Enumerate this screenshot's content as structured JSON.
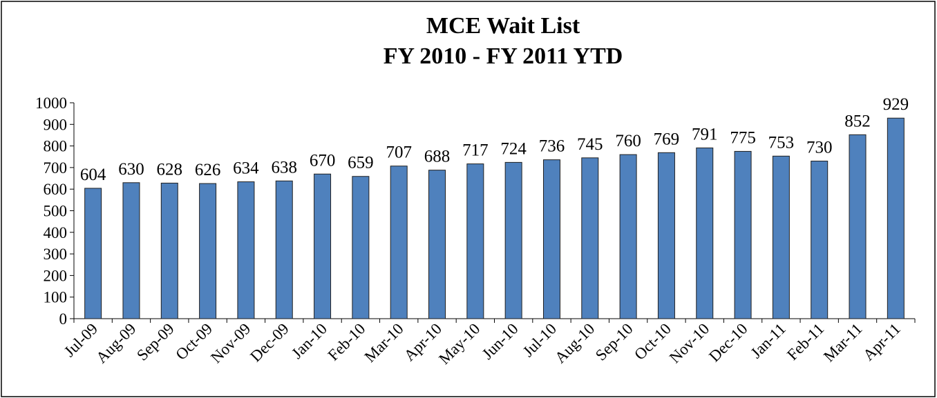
{
  "chart_data": {
    "type": "bar",
    "title": "MCE Wait List",
    "subtitle": "FY 2010 - FY 2011 YTD",
    "categories": [
      "Jul-09",
      "Aug-09",
      "Sep-09",
      "Oct-09",
      "Nov-09",
      "Dec-09",
      "Jan-10",
      "Feb-10",
      "Mar-10",
      "Apr-10",
      "May-10",
      "Jun-10",
      "Jul-10",
      "Aug-10",
      "Sep-10",
      "Oct-10",
      "Nov-10",
      "Dec-10",
      "Jan-11",
      "Feb-11",
      "Mar-11",
      "Apr-11"
    ],
    "values": [
      604,
      630,
      628,
      626,
      634,
      638,
      670,
      659,
      707,
      688,
      717,
      724,
      736,
      745,
      760,
      769,
      791,
      775,
      753,
      730,
      852,
      929
    ],
    "color": "#4f81bd",
    "ylim": [
      0,
      1000
    ],
    "yticks": [
      0,
      100,
      200,
      300,
      400,
      500,
      600,
      700,
      800,
      900,
      1000
    ],
    "grid": false
  }
}
